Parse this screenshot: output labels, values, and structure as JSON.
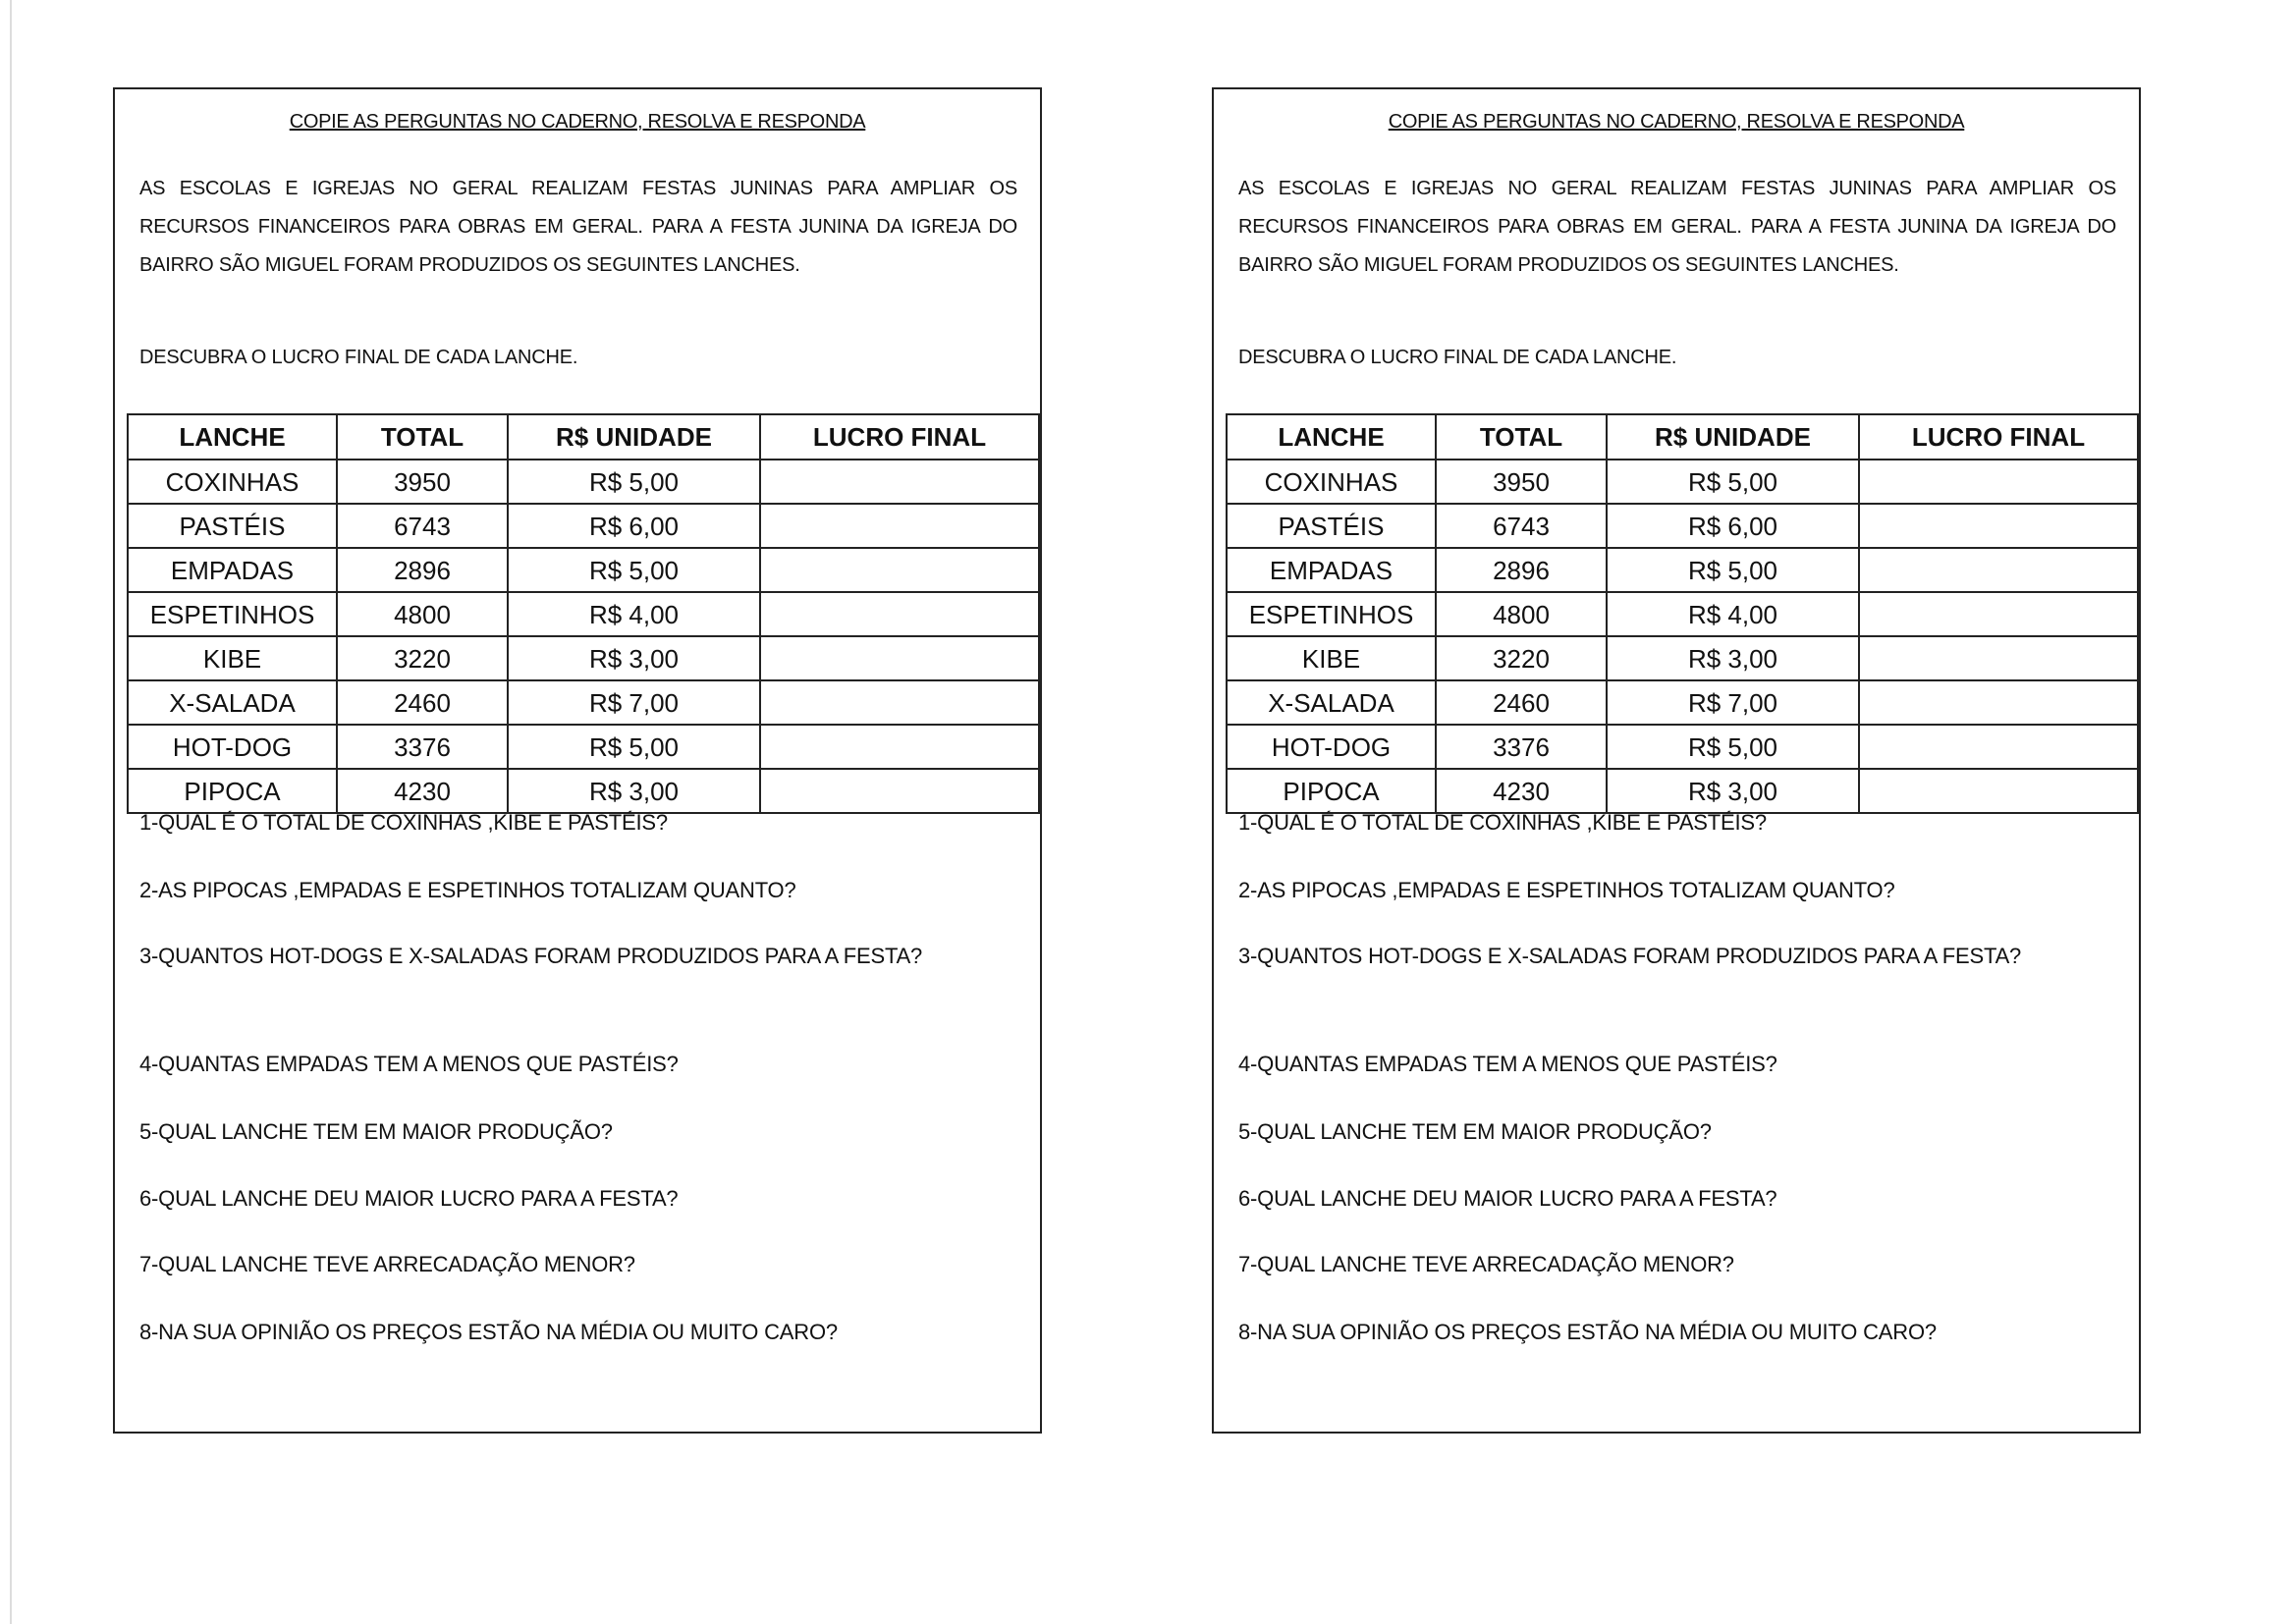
{
  "worksheet": {
    "title": "COPIE AS PERGUNTAS NO CADERNO, RESOLVA E RESPONDA",
    "paragraph": "AS ESCOLAS E IGREJAS NO GERAL REALIZAM FESTAS JUNINAS PARA AMPLIAR OS RECURSOS FINANCEIROS PARA OBRAS EM GERAL.  PARA A FESTA JUNINA DA IGREJA DO BAIRRO SÃO MIGUEL  FORAM PRODUZIDOS OS SEGUINTES LANCHES.",
    "instruction": "DESCUBRA O LUCRO FINAL DE CADA LANCHE.",
    "table": {
      "headers": [
        "LANCHE",
        "TOTAL",
        "R$ UNIDADE",
        "LUCRO FINAL"
      ],
      "rows": [
        [
          "COXINHAS",
          "3950",
          "R$ 5,00",
          ""
        ],
        [
          "PASTÉIS",
          "6743",
          "R$ 6,00",
          ""
        ],
        [
          "EMPADAS",
          "2896",
          "R$ 5,00",
          ""
        ],
        [
          "ESPETINHOS",
          "4800",
          "R$ 4,00",
          ""
        ],
        [
          "KIBE",
          "3220",
          "R$ 3,00",
          ""
        ],
        [
          "X-SALADA",
          "2460",
          "R$ 7,00",
          ""
        ],
        [
          "HOT-DOG",
          "3376",
          "R$ 5,00",
          ""
        ],
        [
          "PIPOCA",
          "4230",
          "R$ 3,00",
          ""
        ]
      ]
    },
    "questions": [
      "1-QUAL É O TOTAL DE COXINHAS ,KIBE E PASTÉIS?",
      "2-AS PIPOCAS ,EMPADAS E ESPETINHOS TOTALIZAM QUANTO?",
      "3-QUANTOS HOT-DOGS E X-SALADAS FORAM PRODUZIDOS PARA A FESTA?",
      "4-QUANTAS EMPADAS TEM A MENOS QUE PASTÉIS?",
      "5-QUAL LANCHE TEM EM MAIOR PRODUÇÃO?",
      "6-QUAL LANCHE DEU MAIOR LUCRO PARA A FESTA?",
      "7-QUAL LANCHE TEVE ARRECADAÇÃO MENOR?",
      "8-NA SUA OPINIÃO OS PREÇOS ESTÃO NA MÉDIA OU MUITO CARO?"
    ]
  }
}
